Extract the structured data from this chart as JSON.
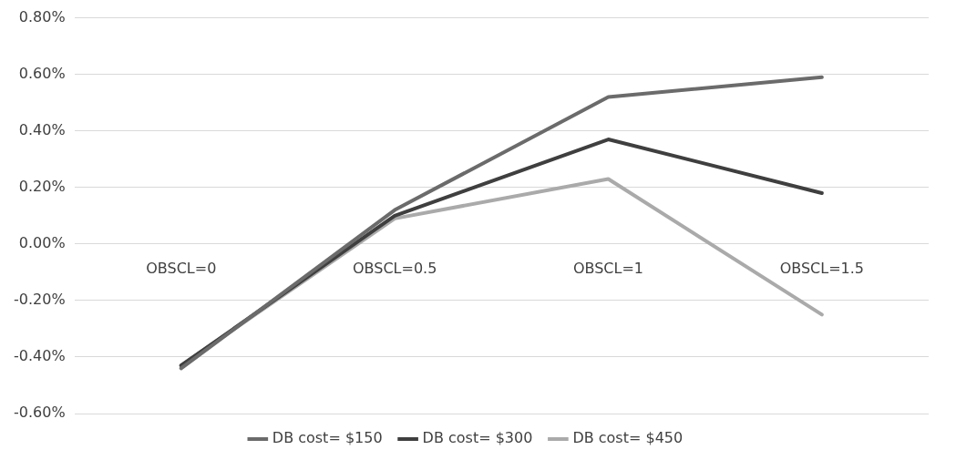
{
  "chart_data": {
    "type": "line",
    "categories": [
      "OBSCL=0",
      "OBSCL=0.5",
      "OBSCL=1",
      "OBSCL=1.5"
    ],
    "series": [
      {
        "name": "DB cost= $150",
        "color": "#6b6b6b",
        "values": [
          -0.44,
          0.12,
          0.52,
          0.59
        ]
      },
      {
        "name": "DB cost= $300",
        "color": "#3f3f3f",
        "values": [
          -0.43,
          0.1,
          0.37,
          0.18
        ]
      },
      {
        "name": "DB cost= $450",
        "color": "#aaaaaa",
        "values": [
          -0.43,
          0.09,
          0.23,
          -0.25
        ]
      }
    ],
    "ylim": [
      -0.6,
      0.8
    ],
    "yticks": [
      {
        "value": -0.6,
        "label": "-0.60%"
      },
      {
        "value": -0.4,
        "label": "-0.40%"
      },
      {
        "value": -0.2,
        "label": "-0.20%"
      },
      {
        "value": 0,
        "label": "0.00%"
      },
      {
        "value": 0.2,
        "label": "0.20%"
      },
      {
        "value": 0.4,
        "label": "0.40%"
      },
      {
        "value": 0.6,
        "label": "0.60%"
      },
      {
        "value": 0.8,
        "label": "0.80%"
      }
    ],
    "grid": "y",
    "legend": "bottom",
    "marker": "none",
    "line_style": "solid"
  }
}
